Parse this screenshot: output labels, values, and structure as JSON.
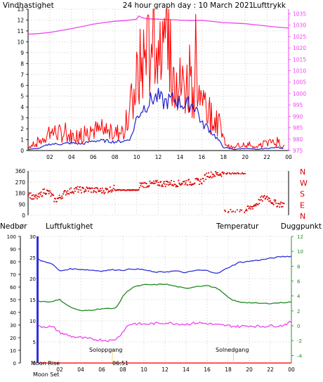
{
  "colors": {
    "wind": "#ff0000",
    "wind_avg": "#2020cc",
    "pressure": "#ee44ee",
    "direction": "#dd0000",
    "humidity": "#3030dd",
    "temperature": "#228822",
    "dewpoint": "#ee44ee",
    "precip": "#ff2020",
    "sun": "#f0d060",
    "axis": "#000000",
    "grid": "#9a9a9a"
  },
  "top": {
    "title_left": "Vindhastighet",
    "title_center": "24 hour graph day : 10 March 2021",
    "title_right": "Lufttrykk",
    "left_ticks": [
      "0",
      "1",
      "2",
      "3",
      "4",
      "5",
      "6",
      "7",
      "8",
      "9",
      "10",
      "11",
      "12",
      "13"
    ],
    "right_ticks": [
      "975",
      "980",
      "985",
      "990",
      "995",
      "1000",
      "1005",
      "1010",
      "1015",
      "1020",
      "1025",
      "1030",
      "1035"
    ],
    "hour_ticks": [
      "02",
      "04",
      "06",
      "08",
      "10",
      "12",
      "14",
      "16",
      "18",
      "20",
      "22",
      "00"
    ]
  },
  "dir": {
    "left_ticks": [
      "0",
      "90",
      "180",
      "270",
      "360"
    ],
    "right_labels": [
      "N",
      "E",
      "S",
      "W",
      "N"
    ]
  },
  "bottom": {
    "label_precip": "Nedbør",
    "label_humidity": "Luftfuktighet",
    "label_temperature": "Temperatur",
    "label_dewpoint": "Duggpunkt",
    "precip_ticks": [
      "0",
      "10",
      "20",
      "30",
      "40",
      "50",
      "60",
      "70",
      "80",
      "90",
      "100"
    ],
    "humidity_ticks": [
      "0",
      "5",
      "10",
      "15",
      "20",
      "25",
      "30"
    ],
    "temp_ticks": [
      "-4",
      "-2",
      "0",
      "2",
      "4",
      "6",
      "8",
      "10",
      "12"
    ],
    "hour_ticks": [
      "02",
      "04",
      "06",
      "08",
      "10",
      "12",
      "14",
      "16",
      "18",
      "20",
      "22",
      "00"
    ],
    "moon_rise": "Moon Rise",
    "moon_set": "Moon Set",
    "sunrise": "Soloppgang",
    "sun_rise_time": "06:51",
    "sunset": "Solnedgang"
  },
  "chart_data": [
    {
      "type": "line",
      "title": "24 hour graph day : 10 March 2021",
      "x_unit": "hour",
      "ylim_left": [
        0,
        13
      ],
      "ylim_right": [
        975,
        1037
      ],
      "series": [
        {
          "name": "Vindhastighet",
          "axis": "left",
          "x": [
            0,
            1,
            2,
            3,
            4,
            5,
            6,
            7,
            8,
            9,
            10,
            10.5,
            11,
            11.5,
            12,
            12.5,
            13,
            13.5,
            14,
            14.5,
            15,
            15.5,
            16,
            16.5,
            17,
            17.5,
            18,
            18.5,
            19,
            20,
            21,
            22,
            23,
            23.5
          ],
          "values": [
            0.3,
            0.6,
            1.5,
            1.3,
            1.1,
            1.2,
            1.6,
            1.4,
            1.3,
            1.6,
            5.2,
            6.8,
            7.0,
            8.8,
            7.2,
            6.5,
            7.5,
            6.0,
            5.0,
            5.0,
            5.2,
            5.2,
            3.2,
            3.0,
            2.5,
            2.2,
            0.8,
            0.3,
            0.2,
            0.5,
            0.2,
            0.6,
            0.7,
            0.3
          ]
        },
        {
          "name": "Vindhastighet snitt",
          "axis": "left",
          "x": [
            0,
            1,
            2,
            3,
            4,
            5,
            6,
            7,
            8,
            9,
            9.5,
            10,
            10.5,
            11,
            11.5,
            12,
            12.5,
            13,
            13.5,
            14,
            14.5,
            15,
            15.5,
            16,
            16.5,
            17,
            17.5,
            18,
            18.5,
            19,
            20,
            21,
            22,
            23,
            23.5
          ],
          "values": [
            0.1,
            0.2,
            0.6,
            0.6,
            0.7,
            0.6,
            0.9,
            0.9,
            0.8,
            0.9,
            1.2,
            3.0,
            3.8,
            4.3,
            4.8,
            4.9,
            4.4,
            4.6,
            4.7,
            4.4,
            4.2,
            4.3,
            4.0,
            2.4,
            2.2,
            1.6,
            1.0,
            0.3,
            0.2,
            0.1,
            0.2,
            0.1,
            0.2,
            0.3,
            0.2
          ]
        },
        {
          "name": "Lufttrykk",
          "axis": "right",
          "x": [
            0,
            1,
            2,
            3,
            4,
            5,
            6,
            7,
            8,
            9,
            10,
            10.2,
            10.5,
            11,
            12,
            13,
            14,
            15,
            16,
            17,
            18,
            19,
            20,
            21,
            22,
            23,
            24
          ],
          "values": [
            1026,
            1026.3,
            1026.8,
            1027.6,
            1028.5,
            1029.4,
            1030.4,
            1031.1,
            1031.7,
            1032.0,
            1032.6,
            1034.0,
            1033.2,
            1032.8,
            1032.6,
            1032.4,
            1032.2,
            1032.0,
            1032.1,
            1031.6,
            1031.1,
            1030.9,
            1030.6,
            1030.1,
            1029.6,
            1029.1,
            1028.7
          ]
        }
      ]
    },
    {
      "type": "scatter",
      "title": "",
      "x_unit": "hour",
      "ylim": [
        0,
        360
      ],
      "series": [
        {
          "name": "Vindretning",
          "x": [
            0,
            0.5,
            1,
            1.5,
            2,
            2.5,
            3,
            3.5,
            4,
            4.5,
            5,
            5.5,
            6,
            6.5,
            7,
            7.5,
            8,
            8.5,
            9,
            9.5,
            10,
            10.5,
            11,
            11.5,
            12,
            12.5,
            13,
            13.5,
            14,
            14.5,
            15,
            15.5,
            16,
            16.5,
            17,
            17.5,
            18,
            18.5,
            19,
            19.5,
            20,
            20.5,
            21,
            21.5,
            22,
            22.5,
            23,
            23.5
          ],
          "values": [
            180,
            140,
            150,
            200,
            180,
            120,
            150,
            190,
            200,
            210,
            205,
            210,
            205,
            200,
            200,
            210,
            220,
            215,
            225,
            230,
            240,
            250,
            250,
            255,
            260,
            255,
            265,
            255,
            260,
            270,
            265,
            275,
            275,
            330,
            330,
            335,
            340,
            340,
            340,
            20,
            40,
            60,
            90,
            130,
            150,
            110,
            90,
            90
          ]
        }
      ]
    },
    {
      "type": "line",
      "title": "",
      "x_unit": "hour",
      "ylim_precip": [
        0,
        100
      ],
      "ylim_humidity": [
        0,
        30
      ],
      "ylim_temp": [
        -5,
        12
      ],
      "series": [
        {
          "name": "Luftfuktighet",
          "axis": "humidity",
          "x": [
            0,
            0.5,
            1,
            1.5,
            2,
            3,
            4,
            5,
            6,
            7,
            8,
            9,
            10,
            11,
            12,
            13,
            14,
            15,
            16,
            17,
            18,
            19,
            20,
            21,
            22,
            23,
            24
          ],
          "values": [
            24.5,
            24.0,
            23.8,
            23.0,
            21.8,
            22.3,
            22.2,
            22.0,
            21.8,
            22.1,
            22.0,
            22.3,
            22.1,
            21.5,
            21.6,
            21.8,
            21.4,
            22.0,
            21.9,
            21.2,
            22.6,
            23.8,
            24.1,
            24.4,
            24.8,
            25.2,
            25.3
          ]
        },
        {
          "name": "Temperatur",
          "axis": "temp",
          "x": [
            0,
            1,
            2,
            3,
            4,
            5,
            6,
            7,
            7.5,
            8,
            8.5,
            9,
            10,
            11,
            12,
            13,
            14,
            15,
            16,
            17,
            18,
            18.5,
            19,
            20,
            21,
            22,
            23,
            24
          ],
          "values": [
            3.3,
            3.2,
            3.5,
            2.5,
            2.0,
            2.1,
            2.3,
            2.3,
            2.6,
            4.0,
            4.7,
            5.2,
            5.5,
            5.5,
            5.6,
            5.3,
            5.0,
            5.3,
            5.4,
            5.0,
            3.8,
            3.4,
            3.2,
            3.1,
            3.0,
            3.0,
            3.1,
            3.2
          ]
        },
        {
          "name": "Duggpunkt",
          "axis": "temp",
          "x": [
            0,
            1,
            1.5,
            2,
            3,
            4,
            5,
            6,
            7,
            7.5,
            8,
            8.5,
            9,
            10,
            11,
            12,
            13,
            14,
            15,
            16,
            17,
            18,
            19,
            20,
            21,
            22,
            23,
            24
          ],
          "values": [
            -0.1,
            -0.1,
            -0.3,
            -0.9,
            -1.4,
            -1.6,
            -1.8,
            -1.9,
            -2.0,
            -1.6,
            -0.8,
            0.1,
            0.3,
            0.2,
            0.3,
            0.4,
            0.3,
            0.2,
            0.4,
            0.3,
            0.1,
            0.0,
            -0.1,
            0.0,
            -0.1,
            0.0,
            0.0,
            0.5
          ]
        },
        {
          "name": "Nedbør",
          "axis": "precip",
          "x": [
            0,
            24
          ],
          "values": [
            0,
            0
          ]
        }
      ]
    }
  ]
}
